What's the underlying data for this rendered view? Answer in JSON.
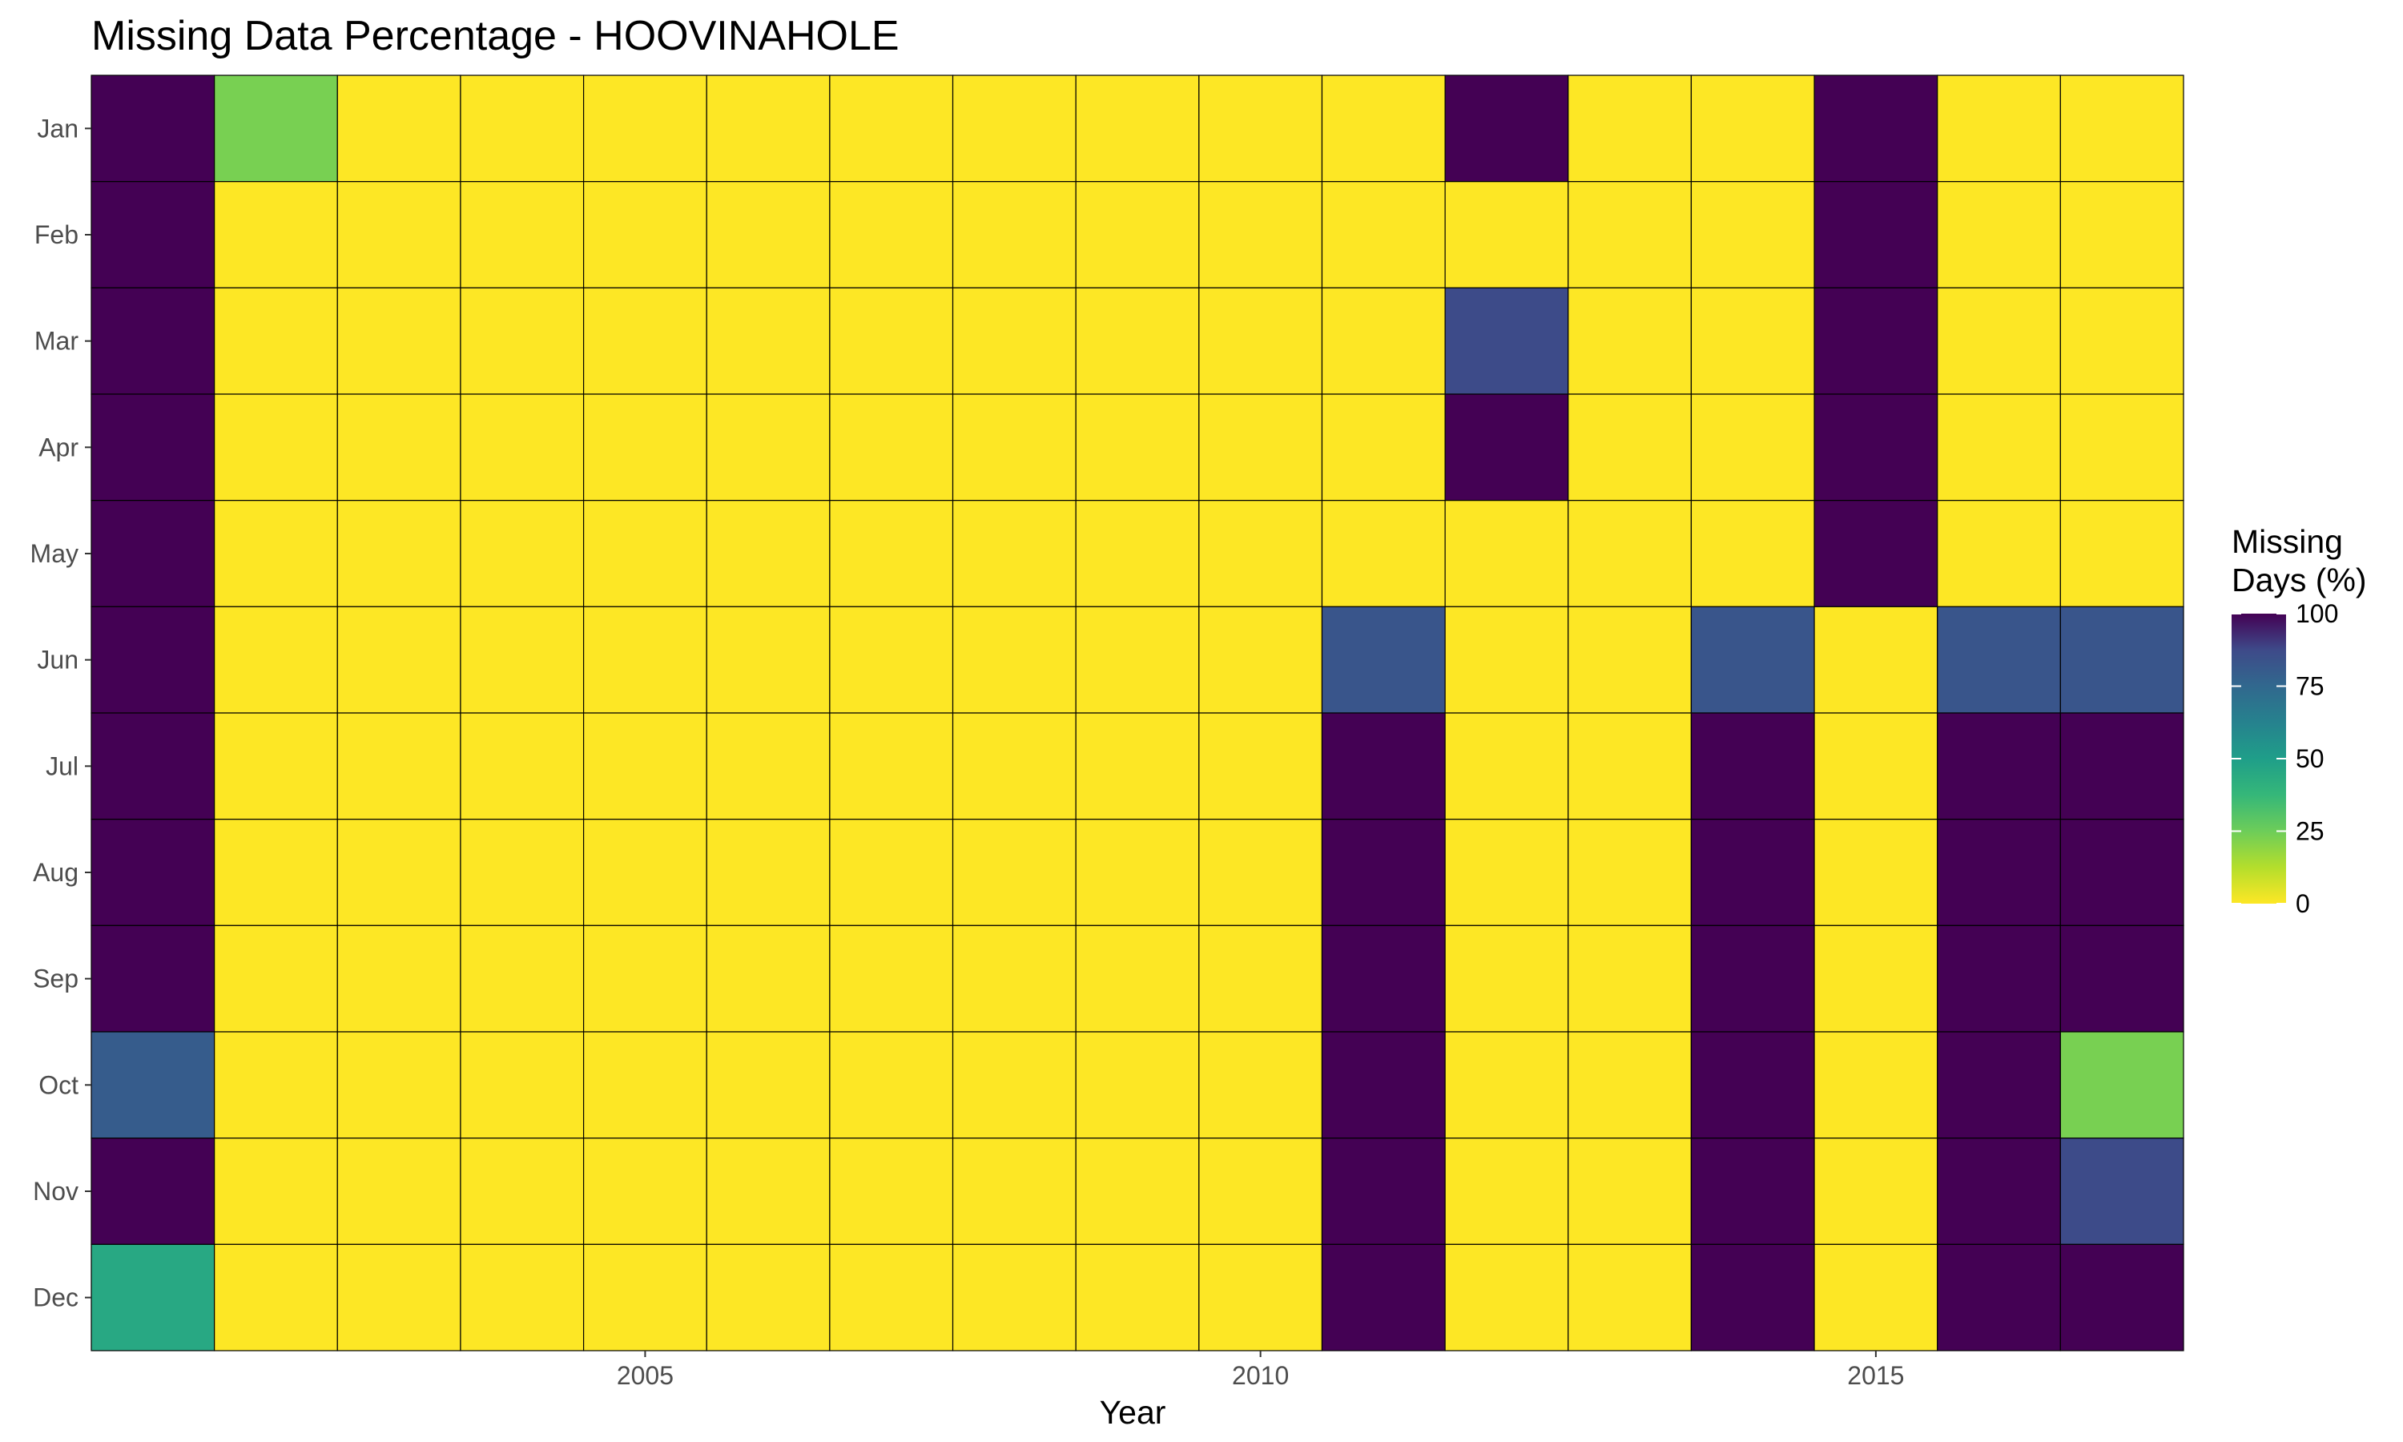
{
  "chart_data": {
    "type": "heatmap",
    "title": "Missing Data Percentage - HOOVINAHOLE",
    "xlabel": "Year",
    "ylabel": "",
    "x": [
      2001,
      2002,
      2003,
      2004,
      2005,
      2006,
      2007,
      2008,
      2009,
      2010,
      2011,
      2012,
      2013,
      2014,
      2015,
      2016,
      2017
    ],
    "y": [
      "Jan",
      "Feb",
      "Mar",
      "Apr",
      "May",
      "Jun",
      "Jul",
      "Aug",
      "Sep",
      "Oct",
      "Nov",
      "Dec"
    ],
    "x_ticks": [
      2005,
      2010,
      2015
    ],
    "xlim": [
      2000.5,
      2017.5
    ],
    "values": [
      [
        100,
        23,
        0,
        0,
        0,
        0,
        0,
        0,
        0,
        0,
        0,
        100,
        0,
        0,
        100,
        0,
        0
      ],
      [
        100,
        0,
        0,
        0,
        0,
        0,
        0,
        0,
        0,
        0,
        0,
        0,
        0,
        0,
        100,
        0,
        0
      ],
      [
        100,
        0,
        0,
        0,
        0,
        0,
        0,
        0,
        0,
        0,
        0,
        87,
        0,
        0,
        100,
        0,
        0
      ],
      [
        100,
        0,
        0,
        0,
        0,
        0,
        0,
        0,
        0,
        0,
        0,
        100,
        0,
        0,
        100,
        0,
        0
      ],
      [
        100,
        0,
        0,
        0,
        0,
        0,
        0,
        0,
        0,
        0,
        0,
        0,
        0,
        0,
        100,
        0,
        0
      ],
      [
        100,
        0,
        0,
        0,
        0,
        0,
        0,
        0,
        0,
        0,
        83,
        0,
        0,
        83,
        0,
        83,
        83
      ],
      [
        100,
        0,
        0,
        0,
        0,
        0,
        0,
        0,
        0,
        0,
        100,
        0,
        0,
        100,
        0,
        100,
        100
      ],
      [
        100,
        0,
        0,
        0,
        0,
        0,
        0,
        0,
        0,
        0,
        100,
        0,
        0,
        100,
        0,
        100,
        100
      ],
      [
        100,
        0,
        0,
        0,
        0,
        0,
        0,
        0,
        0,
        0,
        100,
        0,
        0,
        100,
        0,
        100,
        100
      ],
      [
        80,
        0,
        0,
        0,
        0,
        0,
        0,
        0,
        0,
        0,
        100,
        0,
        0,
        100,
        0,
        100,
        23
      ],
      [
        100,
        0,
        0,
        0,
        0,
        0,
        0,
        0,
        0,
        0,
        100,
        0,
        0,
        100,
        0,
        100,
        87
      ],
      [
        45,
        0,
        0,
        0,
        0,
        0,
        0,
        0,
        0,
        0,
        100,
        0,
        0,
        100,
        0,
        100,
        100
      ]
    ],
    "legend": {
      "title_lines": [
        "Missing",
        "Days (%)"
      ],
      "ticks": [
        100,
        75,
        50,
        25,
        0
      ],
      "range": [
        0,
        100
      ],
      "placement": "right"
    },
    "colorscale": {
      "name": "viridis-reversed",
      "stops": [
        {
          "v": 0,
          "color": "#FDE725"
        },
        {
          "v": 12.5,
          "color": "#B4DE2C"
        },
        {
          "v": 25,
          "color": "#6DCD59"
        },
        {
          "v": 37.5,
          "color": "#35B779"
        },
        {
          "v": 50,
          "color": "#1F9E89"
        },
        {
          "v": 62.5,
          "color": "#26828E"
        },
        {
          "v": 75,
          "color": "#31688E"
        },
        {
          "v": 87.5,
          "color": "#3E4A89"
        },
        {
          "v": 100,
          "color": "#440154"
        }
      ]
    },
    "grid": false,
    "cell_border_color": "#000000"
  }
}
